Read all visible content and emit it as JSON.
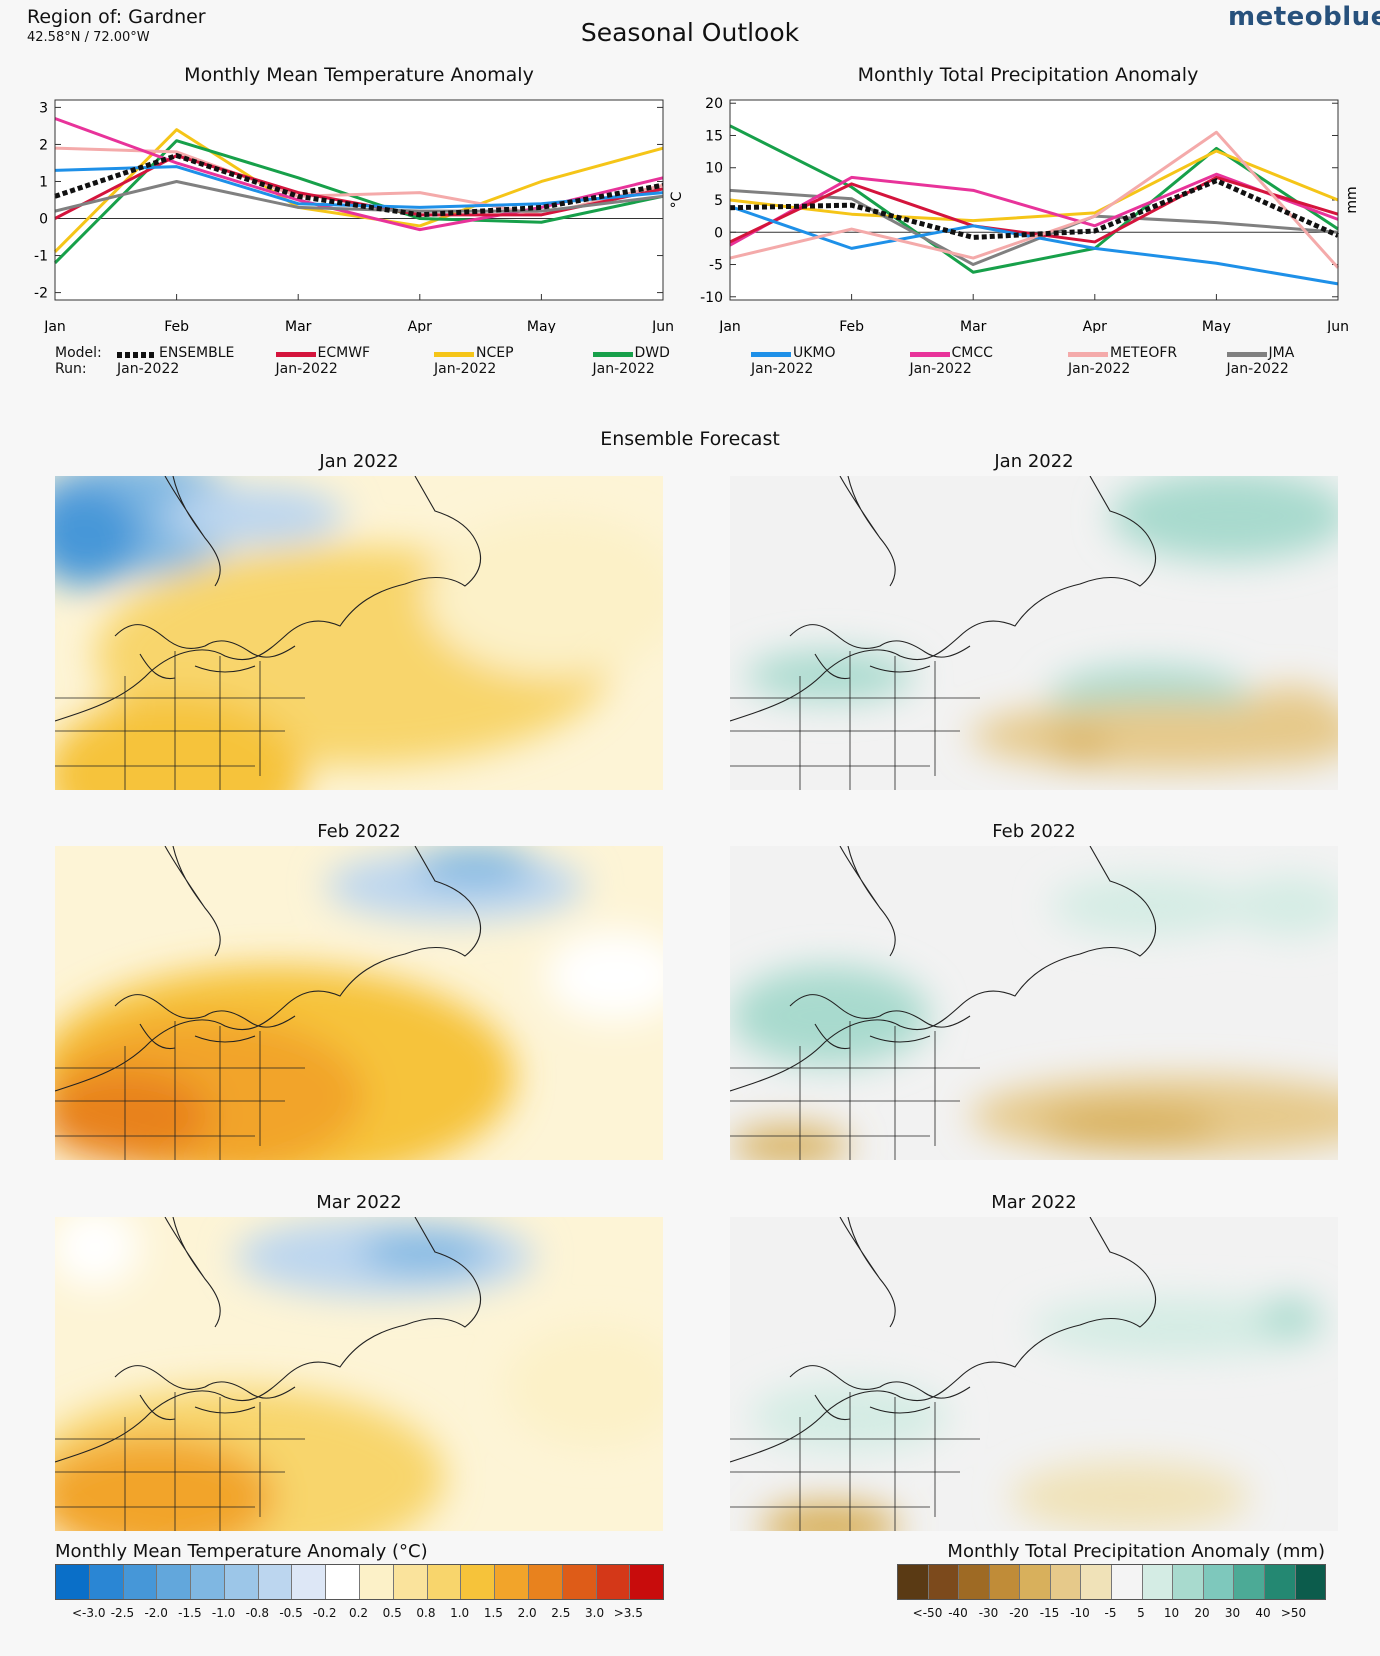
{
  "header": {
    "region": "Region of: Gardner",
    "coords": "42.58°N / 72.00°W",
    "title": "Seasonal Outlook",
    "brand": "meteoblue"
  },
  "colors": {
    "ENSEMBLE": "#111111",
    "ECMWF": "#d4143c",
    "NCEP": "#f5c518",
    "DWD": "#17a04a",
    "UKMO": "#1e90e8",
    "CMCC": "#e8339a",
    "METEOFR": "#f4aaaa",
    "JMA": "#808080"
  },
  "legend": {
    "model_label": "Model:",
    "run_label": "Run:",
    "models": [
      {
        "name": "ENSEMBLE",
        "run": "Jan-2022"
      },
      {
        "name": "ECMWF",
        "run": "Jan-2022"
      },
      {
        "name": "NCEP",
        "run": "Jan-2022"
      },
      {
        "name": "DWD",
        "run": "Jan-2022"
      },
      {
        "name": "UKMO",
        "run": "Jan-2022"
      },
      {
        "name": "CMCC",
        "run": "Jan-2022"
      },
      {
        "name": "METEOFR",
        "run": "Jan-2022"
      },
      {
        "name": "JMA",
        "run": "Jan-2022"
      }
    ]
  },
  "ensemble": {
    "title": "Ensemble Forecast",
    "months": [
      "Jan 2022",
      "Feb 2022",
      "Mar 2022"
    ]
  },
  "colorbars": {
    "temp": {
      "title": "Monthly Mean Temperature Anomaly (°C)",
      "labels": [
        "<-3.0",
        "-2.5",
        "-2.0",
        "-1.5",
        "-1.0",
        "-0.8",
        "-0.5",
        "-0.2",
        "0.2",
        "0.5",
        "0.8",
        "1.0",
        "1.5",
        "2.0",
        "2.5",
        "3.0",
        ">3.5"
      ],
      "colors": [
        "#0a6fc8",
        "#2a86d4",
        "#4697d8",
        "#62a7dc",
        "#7fb7e2",
        "#9cc6e8",
        "#bcd6ef",
        "#dde7f6",
        "#ffffff",
        "#fcf1c8",
        "#fae39c",
        "#f8d56c",
        "#f6c33a",
        "#f2a42a",
        "#e8821e",
        "#de5c18",
        "#d43818",
        "#c80c0c"
      ]
    },
    "precip": {
      "title": "Monthly Total Precipitation Anomaly (mm)",
      "labels": [
        "<-50",
        "-40",
        "-30",
        "-20",
        "-15",
        "-10",
        "-5",
        "5",
        "10",
        "20",
        "30",
        "40",
        ">50"
      ],
      "colors": [
        "#5a3a14",
        "#7c4a1c",
        "#9e6a24",
        "#c08c38",
        "#d8b05c",
        "#e6c98a",
        "#f0e2b8",
        "#f4f4f4",
        "#d4ece4",
        "#a8dace",
        "#7ec8bc",
        "#4caa96",
        "#248872",
        "#0c5c4c"
      ]
    }
  },
  "chart_data": [
    {
      "type": "line",
      "title": "Monthly Mean Temperature Anomaly",
      "xlabel": "",
      "ylabel": "°C",
      "ylim": [
        -2.2,
        3.2
      ],
      "yticks": [
        3,
        2,
        1,
        0,
        -1,
        -2
      ],
      "ytick_labels": [
        "3",
        "2",
        "1",
        "0",
        "-1",
        "-2"
      ],
      "categories": [
        "Jan",
        "Feb",
        "Mar",
        "Apr",
        "May",
        "Jun"
      ],
      "series": [
        {
          "name": "NCEP",
          "values": [
            -0.9,
            2.4,
            0.3,
            -0.2,
            1.0,
            1.9
          ]
        },
        {
          "name": "DWD",
          "values": [
            -1.2,
            2.1,
            1.1,
            0.0,
            -0.1,
            0.6
          ]
        },
        {
          "name": "METEOFR",
          "values": [
            1.9,
            1.8,
            0.6,
            0.7,
            0.1,
            0.9
          ]
        },
        {
          "name": "CMCC",
          "values": [
            2.7,
            1.5,
            0.5,
            -0.3,
            0.3,
            1.1
          ]
        },
        {
          "name": "ECMWF",
          "values": [
            0.0,
            1.7,
            0.7,
            0.1,
            0.1,
            0.8
          ]
        },
        {
          "name": "UKMO",
          "values": [
            1.3,
            1.4,
            0.4,
            0.3,
            0.4,
            0.7
          ]
        },
        {
          "name": "JMA",
          "values": [
            0.2,
            1.0,
            0.3,
            0.2,
            0.2,
            0.6
          ]
        },
        {
          "name": "ENSEMBLE",
          "values": [
            0.6,
            1.7,
            0.6,
            0.1,
            0.3,
            0.9
          ]
        }
      ]
    },
    {
      "type": "line",
      "title": "Monthly Total Precipitation Anomaly",
      "xlabel": "",
      "ylabel": "mm",
      "ylim": [
        -10.5,
        20.5
      ],
      "yticks": [
        20,
        15,
        10,
        5,
        0,
        -5,
        -10
      ],
      "ytick_labels": [
        "20",
        "15",
        "10",
        "5",
        "0",
        "-5",
        "-10"
      ],
      "categories": [
        "Jan",
        "Feb",
        "Mar",
        "Apr",
        "May",
        "Jun"
      ],
      "series": [
        {
          "name": "DWD",
          "values": [
            16.5,
            7.0,
            -6.2,
            -2.5,
            13.0,
            0.5
          ]
        },
        {
          "name": "NCEP",
          "values": [
            5.0,
            2.8,
            1.8,
            3.0,
            12.6,
            5.0
          ]
        },
        {
          "name": "JMA",
          "values": [
            6.5,
            5.2,
            -5.0,
            2.5,
            1.5,
            0.0
          ]
        },
        {
          "name": "CMCC",
          "values": [
            -2.0,
            8.5,
            6.5,
            1.0,
            9.0,
            2.0
          ]
        },
        {
          "name": "ECMWF",
          "values": [
            -1.5,
            7.5,
            1.0,
            -1.5,
            8.5,
            2.8
          ]
        },
        {
          "name": "UKMO",
          "values": [
            4.0,
            -2.5,
            1.0,
            -2.5,
            -4.8,
            -8.0
          ]
        },
        {
          "name": "METEOFR",
          "values": [
            -4.0,
            0.5,
            -4.0,
            2.5,
            15.5,
            -5.5
          ]
        },
        {
          "name": "ENSEMBLE",
          "values": [
            3.8,
            4.2,
            -0.8,
            0.2,
            8.0,
            -0.5
          ]
        }
      ]
    }
  ]
}
